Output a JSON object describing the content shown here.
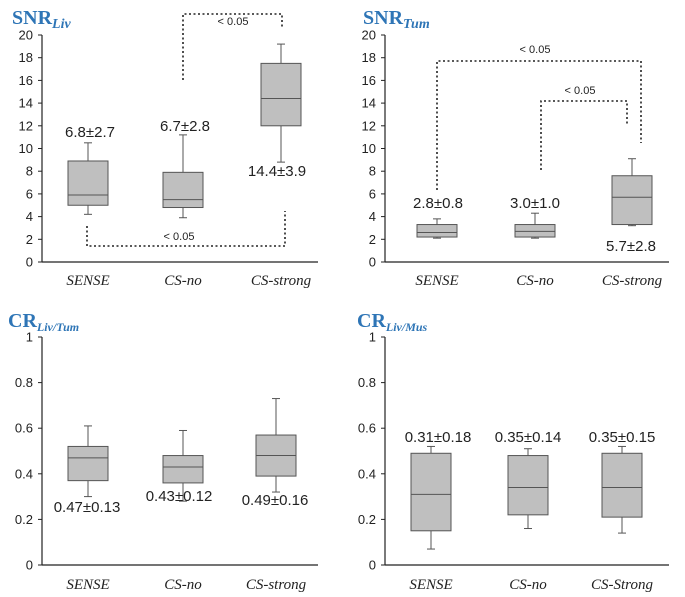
{
  "chart_data": [
    {
      "type": "box",
      "title_main": "SNR",
      "title_sub": "Liv",
      "categories": [
        "SENSE",
        "CS-no",
        "CS-strong"
      ],
      "ylim": [
        0,
        20
      ],
      "yticks": [
        0,
        2,
        4,
        6,
        8,
        10,
        12,
        14,
        16,
        18,
        20
      ],
      "ytick_labels": [
        "0",
        "2",
        "4",
        "6",
        "8",
        "10",
        "12",
        "14",
        "16",
        "18",
        "20"
      ],
      "boxes": [
        {
          "min": 4.2,
          "q1": 5.0,
          "median": 5.9,
          "q3": 8.9,
          "max": 10.5
        },
        {
          "min": 3.9,
          "q1": 4.8,
          "median": 5.5,
          "q3": 7.9,
          "max": 11.2
        },
        {
          "min": 8.8,
          "q1": 12.0,
          "median": 14.4,
          "q3": 17.5,
          "max": 19.2
        }
      ],
      "annotations": [
        "6.8±2.7",
        "6.7±2.8",
        "14.4±3.9"
      ],
      "significance": [
        {
          "label": "< 0.05",
          "from": 1,
          "to": 2
        },
        {
          "label": "< 0.05",
          "from": 0,
          "to": 2
        }
      ]
    },
    {
      "type": "box",
      "title_main": "SNR",
      "title_sub": "Tum",
      "categories": [
        "SENSE",
        "CS-no",
        "CS-strong"
      ],
      "ylim": [
        0,
        20
      ],
      "yticks": [
        0,
        2,
        4,
        6,
        8,
        10,
        12,
        14,
        16,
        18,
        20
      ],
      "ytick_labels": [
        "0",
        "2",
        "4",
        "6",
        "8",
        "10",
        "12",
        "14",
        "16",
        "18",
        "20"
      ],
      "boxes": [
        {
          "min": 2.1,
          "q1": 2.2,
          "median": 2.6,
          "q3": 3.3,
          "max": 3.8
        },
        {
          "min": 2.1,
          "q1": 2.2,
          "median": 2.7,
          "q3": 3.3,
          "max": 4.3
        },
        {
          "min": 3.2,
          "q1": 3.3,
          "median": 5.7,
          "q3": 7.6,
          "max": 9.1
        }
      ],
      "annotations": [
        "2.8±0.8",
        "3.0±1.0",
        "5.7±2.8"
      ],
      "significance": [
        {
          "label": "< 0.05",
          "from": 0,
          "to": 2
        },
        {
          "label": "< 0.05",
          "from": 1,
          "to": 2
        }
      ]
    },
    {
      "type": "box",
      "title_main": "CR",
      "title_sub": "Liv/Tum",
      "categories": [
        "SENSE",
        "CS-no",
        "CS-strong"
      ],
      "ylim": [
        0,
        1
      ],
      "yticks": [
        0,
        0.2,
        0.4,
        0.6,
        0.8,
        1
      ],
      "ytick_labels": [
        "0",
        "0.2",
        "0.4",
        "0.6",
        "0.8",
        "1"
      ],
      "boxes": [
        {
          "min": 0.3,
          "q1": 0.37,
          "median": 0.47,
          "q3": 0.52,
          "max": 0.61
        },
        {
          "min": 0.28,
          "q1": 0.36,
          "median": 0.43,
          "q3": 0.48,
          "max": 0.59
        },
        {
          "min": 0.32,
          "q1": 0.39,
          "median": 0.48,
          "q3": 0.57,
          "max": 0.73
        }
      ],
      "annotations": [
        "0.47±0.13",
        "0.43±0.12",
        "0.49±0.16"
      ],
      "significance": []
    },
    {
      "type": "box",
      "title_main": "CR",
      "title_sub": "Liv/Mus",
      "categories": [
        "SENSE",
        "CS-no",
        "CS-Strong"
      ],
      "ylim": [
        0,
        1
      ],
      "yticks": [
        0,
        0.2,
        0.4,
        0.6,
        0.8,
        1
      ],
      "ytick_labels": [
        "0",
        "0.2",
        "0.4",
        "0.6",
        "0.8",
        "1"
      ],
      "boxes": [
        {
          "min": 0.07,
          "q1": 0.15,
          "median": 0.31,
          "q3": 0.49,
          "max": 0.52
        },
        {
          "min": 0.16,
          "q1": 0.22,
          "median": 0.34,
          "q3": 0.48,
          "max": 0.51
        },
        {
          "min": 0.14,
          "q1": 0.21,
          "median": 0.34,
          "q3": 0.49,
          "max": 0.52
        }
      ],
      "annotations": [
        "0.31±0.18",
        "0.35±0.14",
        "0.35±0.15"
      ],
      "significance": []
    }
  ],
  "colors": {
    "title": "#2e75b6",
    "box_fill": "#bfbfbf",
    "box_stroke": "#555555",
    "axis": "#222222",
    "text": "#222222"
  }
}
